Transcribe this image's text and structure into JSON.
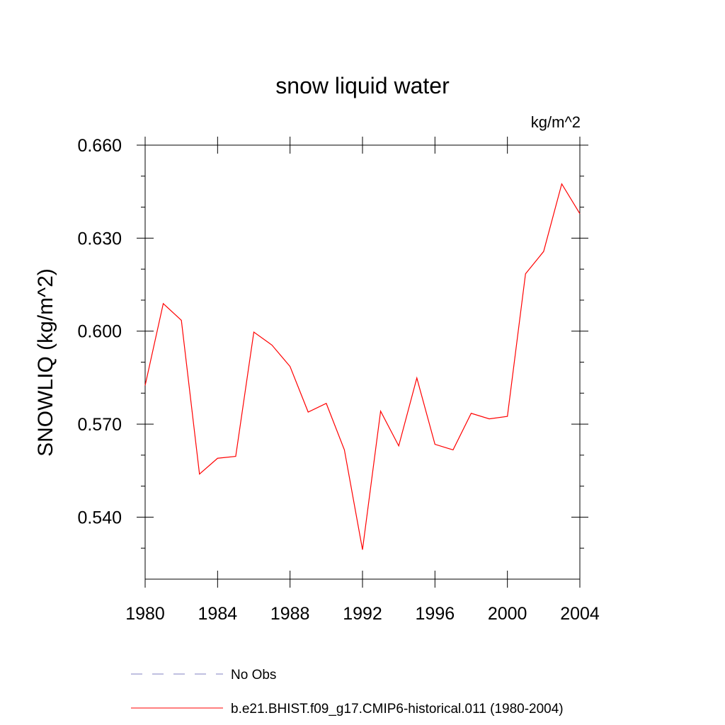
{
  "chart_data": {
    "type": "line",
    "title": "snow liquid water",
    "units_label": "kg/m^2",
    "ylabel": "SNOWLIQ  (kg/m^2)",
    "xlabel": "",
    "xlim": [
      1980,
      2004
    ],
    "ylim": [
      0.52,
      0.66
    ],
    "x_ticks": [
      "1980",
      "1984",
      "1988",
      "1992",
      "1996",
      "2000",
      "2004"
    ],
    "y_ticks": [
      "0.540",
      "0.570",
      "0.600",
      "0.630",
      "0.660"
    ],
    "grid": false,
    "legend_position": "bottom",
    "series": [
      {
        "name": "No Obs",
        "color": "#8080c0",
        "style": "dashed",
        "x": [],
        "values": []
      },
      {
        "name": "b.e21.BHIST.f09_g17.CMIP6-historical.011 (1980-2004)",
        "color": "#ff0000",
        "style": "solid",
        "x": [
          1980,
          1981,
          1982,
          1983,
          1984,
          1985,
          1986,
          1987,
          1988,
          1989,
          1990,
          1991,
          1992,
          1993,
          1994,
          1995,
          1996,
          1997,
          1998,
          1999,
          2000,
          2001,
          2002,
          2003,
          2004
        ],
        "values": [
          0.5825,
          0.6089,
          0.6035,
          0.5539,
          0.559,
          0.5596,
          0.5997,
          0.5955,
          0.5886,
          0.5739,
          0.5767,
          0.5617,
          0.5295,
          0.5742,
          0.563,
          0.5849,
          0.5635,
          0.5617,
          0.5735,
          0.5717,
          0.5725,
          0.6185,
          0.6257,
          0.6475,
          0.6379
        ]
      }
    ]
  }
}
